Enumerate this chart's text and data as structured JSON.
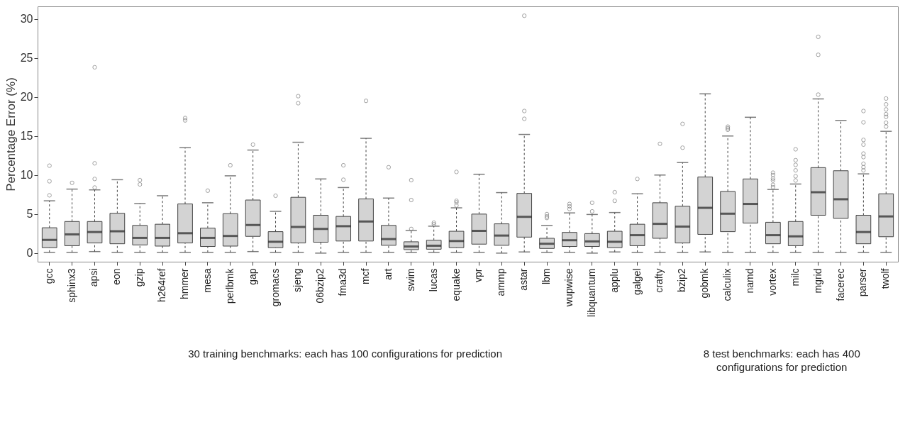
{
  "chart_data": {
    "type": "box",
    "ylabel": "Percentage Error (%)",
    "ylim": [
      -1.1,
      31.6
    ],
    "yticks": [
      0,
      5,
      10,
      15,
      20,
      25,
      30
    ],
    "grid": false,
    "color": "#d3d3d3",
    "categories": [
      "gcc",
      "sphinx3",
      "apsi",
      "eon",
      "gzip",
      "h264ref",
      "hmmer",
      "mesa",
      "perlbmk",
      "gap",
      "gromacs",
      "sjeng",
      "06bzip2",
      "fma3d",
      "mcf",
      "art",
      "swim",
      "lucas",
      "equake",
      "vpr",
      "ammp",
      "astar",
      "lbm",
      "wupwise",
      "libquantum",
      "applu",
      "galgel",
      "crafty",
      "bzip2",
      "gobmk",
      "calculix",
      "namd",
      "vortex",
      "milc",
      "mgrid",
      "facerec",
      "parser",
      "twolf"
    ],
    "boxes": [
      {
        "low": 0.1,
        "q1": 0.7,
        "median": 1.7,
        "q3": 3.25,
        "high": 6.7,
        "outliers": [
          7.4,
          9.2,
          11.2
        ]
      },
      {
        "low": 0.1,
        "q1": 0.95,
        "median": 2.4,
        "q3": 4.05,
        "high": 8.2,
        "outliers": [
          9.0
        ]
      },
      {
        "low": 0.2,
        "q1": 1.3,
        "median": 2.7,
        "q3": 4.05,
        "high": 8.1,
        "outliers": [
          8.4,
          9.5,
          11.5,
          23.8
        ]
      },
      {
        "low": 0.1,
        "q1": 1.2,
        "median": 2.8,
        "q3": 5.1,
        "high": 9.4
      },
      {
        "low": 0.1,
        "q1": 1.05,
        "median": 1.95,
        "q3": 3.55,
        "high": 6.35,
        "outliers": [
          8.8,
          9.35
        ]
      },
      {
        "low": 0.1,
        "q1": 0.9,
        "median": 1.95,
        "q3": 3.7,
        "high": 7.35
      },
      {
        "low": 0.1,
        "q1": 1.3,
        "median": 2.55,
        "q3": 6.3,
        "high": 13.5,
        "outliers": [
          17.0,
          17.3
        ]
      },
      {
        "low": 0.1,
        "q1": 0.85,
        "median": 1.95,
        "q3": 3.2,
        "high": 6.45,
        "outliers": [
          8.0
        ]
      },
      {
        "low": 0.1,
        "q1": 0.9,
        "median": 2.2,
        "q3": 5.05,
        "high": 9.9,
        "outliers": [
          11.25
        ]
      },
      {
        "low": 0.2,
        "q1": 2.15,
        "median": 3.6,
        "q3": 6.8,
        "high": 13.2,
        "outliers": [
          13.9
        ]
      },
      {
        "low": 0.1,
        "q1": 0.7,
        "median": 1.45,
        "q3": 2.75,
        "high": 5.35,
        "outliers": [
          7.35
        ]
      },
      {
        "low": 0.1,
        "q1": 1.3,
        "median": 3.35,
        "q3": 7.15,
        "high": 14.2,
        "outliers": [
          19.2,
          20.1
        ]
      },
      {
        "low": 0.0,
        "q1": 1.4,
        "median": 3.1,
        "q3": 4.85,
        "high": 9.5
      },
      {
        "low": 0.1,
        "q1": 1.55,
        "median": 3.45,
        "q3": 4.7,
        "high": 8.4,
        "outliers": [
          9.4,
          11.25
        ]
      },
      {
        "low": 0.1,
        "q1": 1.55,
        "median": 4.05,
        "q3": 6.95,
        "high": 14.7,
        "outliers": [
          19.5
        ]
      },
      {
        "low": 0.1,
        "q1": 1.0,
        "median": 1.8,
        "q3": 3.55,
        "high": 7.05,
        "outliers": [
          11.0
        ]
      },
      {
        "low": 0.1,
        "q1": 0.45,
        "median": 0.85,
        "q3": 1.45,
        "high": 2.9,
        "outliers": [
          3.1,
          6.8,
          9.35
        ]
      },
      {
        "low": 0.1,
        "q1": 0.5,
        "median": 0.95,
        "q3": 1.65,
        "high": 3.45,
        "outliers": [
          3.7,
          3.9
        ]
      },
      {
        "low": 0.1,
        "q1": 0.7,
        "median": 1.55,
        "q3": 2.8,
        "high": 5.8,
        "outliers": [
          6.1,
          6.5,
          6.7,
          10.4
        ]
      },
      {
        "low": 0.1,
        "q1": 1.15,
        "median": 2.85,
        "q3": 5.0,
        "high": 10.1
      },
      {
        "low": 0.0,
        "q1": 1.0,
        "median": 2.25,
        "q3": 3.75,
        "high": 7.75
      },
      {
        "low": 0.15,
        "q1": 2.05,
        "median": 4.65,
        "q3": 7.65,
        "high": 15.2,
        "outliers": [
          17.2,
          18.2,
          30.4
        ]
      },
      {
        "low": 0.1,
        "q1": 0.6,
        "median": 1.2,
        "q3": 1.9,
        "high": 3.55,
        "outliers": [
          4.5,
          4.7,
          5.0
        ]
      },
      {
        "low": 0.1,
        "q1": 0.85,
        "median": 1.65,
        "q3": 2.65,
        "high": 5.15,
        "outliers": [
          5.65,
          6.0,
          6.3
        ]
      },
      {
        "low": 0.0,
        "q1": 0.85,
        "median": 1.5,
        "q3": 2.5,
        "high": 4.95,
        "outliers": [
          5.35,
          6.45
        ]
      },
      {
        "low": 0.15,
        "q1": 0.7,
        "median": 1.45,
        "q3": 2.8,
        "high": 5.2,
        "outliers": [
          6.7,
          7.8
        ]
      },
      {
        "low": 0.1,
        "q1": 0.95,
        "median": 2.3,
        "q3": 3.7,
        "high": 7.6,
        "outliers": [
          9.5
        ]
      },
      {
        "low": 0.1,
        "q1": 1.9,
        "median": 3.75,
        "q3": 6.45,
        "high": 10.0,
        "outliers": [
          14.0
        ]
      },
      {
        "low": 0.1,
        "q1": 1.3,
        "median": 3.4,
        "q3": 6.0,
        "high": 11.6,
        "outliers": [
          13.5,
          16.55
        ]
      },
      {
        "low": 0.15,
        "q1": 2.4,
        "median": 5.8,
        "q3": 9.75,
        "high": 20.4
      },
      {
        "low": 0.1,
        "q1": 2.75,
        "median": 5.05,
        "q3": 7.9,
        "high": 15.0,
        "outliers": [
          15.8,
          16.0,
          16.2
        ]
      },
      {
        "low": 0.1,
        "q1": 3.85,
        "median": 6.3,
        "q3": 9.5,
        "high": 17.4
      },
      {
        "low": 0.1,
        "q1": 1.2,
        "median": 2.3,
        "q3": 3.95,
        "high": 8.15,
        "outliers": [
          8.45,
          8.75,
          9.3,
          9.55,
          10.0,
          10.3
        ]
      },
      {
        "low": 0.1,
        "q1": 0.95,
        "median": 2.15,
        "q3": 4.05,
        "high": 8.85,
        "outliers": [
          9.3,
          9.85,
          10.6,
          11.3,
          11.9,
          13.3
        ]
      },
      {
        "low": 0.1,
        "q1": 4.85,
        "median": 7.8,
        "q3": 10.95,
        "high": 19.75,
        "outliers": [
          20.3,
          25.4,
          27.7
        ]
      },
      {
        "low": 0.1,
        "q1": 4.45,
        "median": 6.9,
        "q3": 10.55,
        "high": 17.0
      },
      {
        "low": 0.1,
        "q1": 1.2,
        "median": 2.7,
        "q3": 4.85,
        "high": 10.15,
        "outliers": [
          10.6,
          11.0,
          11.45,
          12.3,
          12.75,
          13.9,
          14.5,
          16.75,
          18.2
        ]
      },
      {
        "low": 0.1,
        "q1": 2.1,
        "median": 4.7,
        "q3": 7.6,
        "high": 15.6,
        "outliers": [
          16.2,
          16.7,
          17.45,
          17.8,
          18.4,
          19.05,
          19.8
        ]
      }
    ],
    "annotations": [
      "30 training benchmarks: each has 100 configurations for prediction",
      "8 test benchmarks: each has 400 configurations for prediction"
    ]
  }
}
